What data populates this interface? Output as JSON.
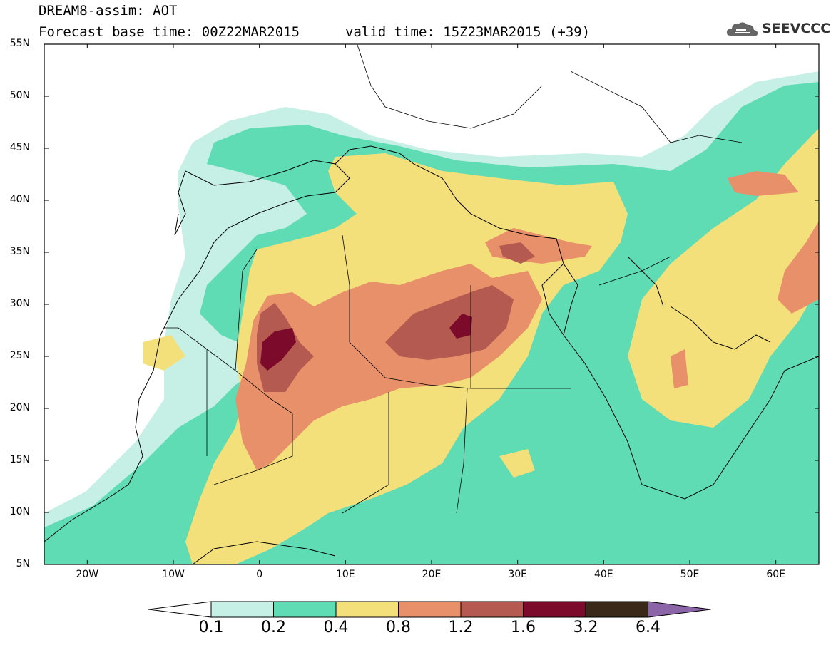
{
  "header": {
    "title": "DREAM8-assim: AOT",
    "base_time": "Forecast base time: 00Z22MAR2015",
    "valid_time": "valid time: 15Z23MAR2015 (+39)"
  },
  "logo": {
    "text": "SEEVCCC",
    "icon": "cloud-icon"
  },
  "map": {
    "lat_labels": [
      "55N",
      "50N",
      "45N",
      "40N",
      "35N",
      "30N",
      "25N",
      "20N",
      "15N",
      "10N",
      "5N"
    ],
    "lon_labels": [
      "20W",
      "10W",
      "0",
      "10E",
      "20E",
      "30E",
      "40E",
      "50E",
      "60E"
    ],
    "lon_range": [
      -25,
      65
    ],
    "lat_range": [
      5,
      55
    ]
  },
  "colorbar": {
    "labels": [
      "0.1",
      "0.2",
      "0.4",
      "0.8",
      "1.2",
      "1.6",
      "3.2",
      "6.4"
    ],
    "colors": [
      "#c6f0e6",
      "#5fdcb4",
      "#f4e07a",
      "#e8906a",
      "#b45a50",
      "#7c0a2a",
      "#3a2818",
      "#8c64a8"
    ]
  }
}
